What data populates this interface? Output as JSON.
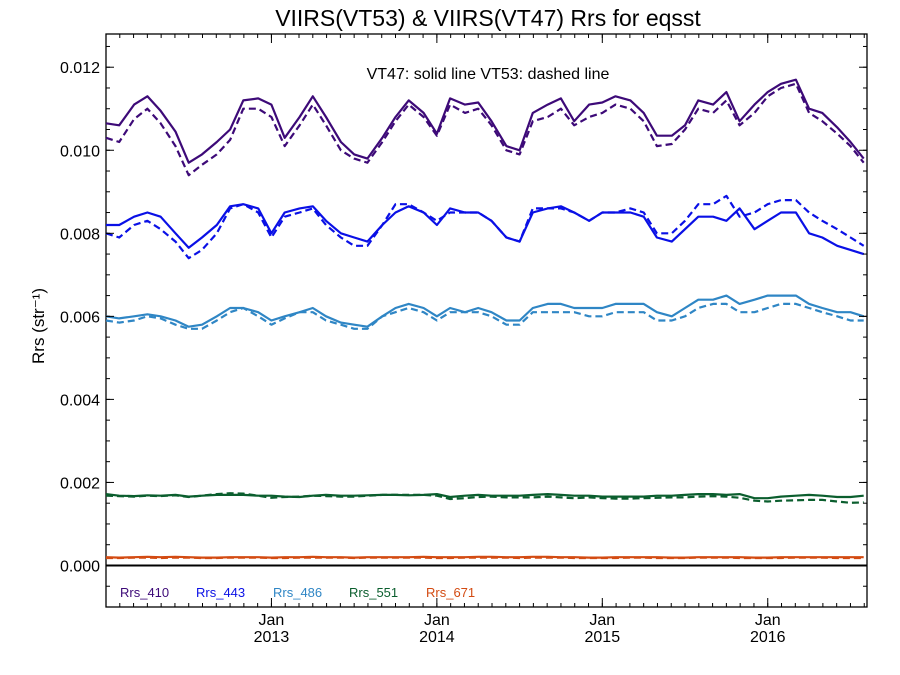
{
  "chart_data": {
    "type": "line",
    "title": "VIIRS(VT53) & VIIRS(VT47)  Rrs for eqsst",
    "annotation": "VT47: solid line   VT53: dashed line",
    "ylabel": "Rrs (str⁻¹)",
    "ylim": [
      -0.001,
      0.0128
    ],
    "xlim": [
      2012.0,
      2016.6
    ],
    "yticks": [
      "0.000",
      "0.002",
      "0.004",
      "0.006",
      "0.008",
      "0.010",
      "0.012"
    ],
    "xticks": [
      {
        "pos": 2013.0,
        "line1": "Jan",
        "line2": "2013"
      },
      {
        "pos": 2014.0,
        "line1": "Jan",
        "line2": "2014"
      },
      {
        "pos": 2015.0,
        "line1": "Jan",
        "line2": "2015"
      },
      {
        "pos": 2016.0,
        "line1": "Jan",
        "line2": "2016"
      }
    ],
    "legend_placement": "bottom-left",
    "grid": false,
    "zero_line": true,
    "x": [
      2012.0,
      2012.08,
      2012.17,
      2012.25,
      2012.33,
      2012.42,
      2012.5,
      2012.58,
      2012.67,
      2012.75,
      2012.83,
      2012.92,
      2013.0,
      2013.08,
      2013.17,
      2013.25,
      2013.33,
      2013.42,
      2013.5,
      2013.58,
      2013.67,
      2013.75,
      2013.83,
      2013.92,
      2014.0,
      2014.08,
      2014.17,
      2014.25,
      2014.33,
      2014.42,
      2014.5,
      2014.58,
      2014.67,
      2014.75,
      2014.83,
      2014.92,
      2015.0,
      2015.08,
      2015.17,
      2015.25,
      2015.33,
      2015.42,
      2015.5,
      2015.58,
      2015.67,
      2015.75,
      2015.83,
      2015.92,
      2016.0,
      2016.08,
      2016.17,
      2016.25,
      2016.33,
      2016.42,
      2016.5,
      2016.58
    ],
    "series": [
      {
        "name": "Rrs_410",
        "band": "410",
        "style": "solid",
        "color": "#3d0a78",
        "values": [
          0.01065,
          0.0106,
          0.0111,
          0.0113,
          0.01095,
          0.01045,
          0.0097,
          0.0099,
          0.0102,
          0.0105,
          0.0112,
          0.01125,
          0.0111,
          0.0103,
          0.0108,
          0.0113,
          0.0108,
          0.0102,
          0.0099,
          0.0098,
          0.0103,
          0.0108,
          0.0112,
          0.0109,
          0.0104,
          0.01125,
          0.0111,
          0.01115,
          0.0107,
          0.0101,
          0.01,
          0.0109,
          0.0111,
          0.01125,
          0.0107,
          0.0111,
          0.01115,
          0.0113,
          0.0112,
          0.0109,
          0.01035,
          0.01035,
          0.0106,
          0.0112,
          0.0111,
          0.0114,
          0.0107,
          0.0111,
          0.0114,
          0.0116,
          0.0117,
          0.011,
          0.0109,
          0.01055,
          0.0102,
          0.0098
        ]
      },
      {
        "name": "Rrs_410",
        "band": "410",
        "style": "dashed",
        "color": "#3d0a78",
        "values": [
          0.0103,
          0.0102,
          0.01075,
          0.011,
          0.01065,
          0.0101,
          0.0094,
          0.00965,
          0.0099,
          0.01025,
          0.011,
          0.011,
          0.0108,
          0.0101,
          0.0106,
          0.0111,
          0.0106,
          0.01,
          0.0098,
          0.0097,
          0.0102,
          0.0107,
          0.0111,
          0.0108,
          0.01035,
          0.0111,
          0.0109,
          0.011,
          0.0106,
          0.01,
          0.0099,
          0.0107,
          0.0108,
          0.011,
          0.0106,
          0.0108,
          0.0109,
          0.0111,
          0.011,
          0.0107,
          0.0101,
          0.01015,
          0.0105,
          0.011,
          0.0109,
          0.0112,
          0.0106,
          0.0109,
          0.0113,
          0.0115,
          0.0116,
          0.0109,
          0.0107,
          0.0104,
          0.0101,
          0.0097
        ]
      },
      {
        "name": "Rrs_443",
        "band": "443",
        "style": "solid",
        "color": "#0a10e6",
        "values": [
          0.0082,
          0.0082,
          0.0084,
          0.0085,
          0.0084,
          0.008,
          0.00765,
          0.0079,
          0.0082,
          0.00865,
          0.0087,
          0.0086,
          0.008,
          0.0085,
          0.0086,
          0.00865,
          0.0083,
          0.008,
          0.0079,
          0.0078,
          0.0082,
          0.0085,
          0.00865,
          0.0085,
          0.0082,
          0.0086,
          0.0085,
          0.0085,
          0.0083,
          0.0079,
          0.0078,
          0.0085,
          0.0086,
          0.00865,
          0.0085,
          0.0083,
          0.0085,
          0.0085,
          0.0085,
          0.0084,
          0.0079,
          0.0078,
          0.0081,
          0.0084,
          0.0084,
          0.0083,
          0.0086,
          0.0081,
          0.0083,
          0.0085,
          0.0085,
          0.008,
          0.0079,
          0.0077,
          0.0076,
          0.0075
        ]
      },
      {
        "name": "Rrs_443",
        "band": "443",
        "style": "dashed",
        "color": "#0a10e6",
        "values": [
          0.008,
          0.0079,
          0.0082,
          0.0083,
          0.0081,
          0.0078,
          0.0074,
          0.0076,
          0.008,
          0.0086,
          0.0087,
          0.0085,
          0.0079,
          0.0084,
          0.0085,
          0.0086,
          0.0082,
          0.0079,
          0.0077,
          0.0077,
          0.0082,
          0.0087,
          0.0087,
          0.0085,
          0.0083,
          0.0085,
          0.0085,
          0.0085,
          0.0083,
          0.0079,
          0.0078,
          0.0086,
          0.0086,
          0.0086,
          0.0085,
          0.0083,
          0.0085,
          0.0085,
          0.0086,
          0.0085,
          0.008,
          0.008,
          0.0083,
          0.0087,
          0.0087,
          0.0089,
          0.0084,
          0.0085,
          0.0087,
          0.0088,
          0.0088,
          0.0085,
          0.0083,
          0.0081,
          0.0079,
          0.0077
        ]
      },
      {
        "name": "Rrs_486",
        "band": "486",
        "style": "solid",
        "color": "#2f86c5",
        "values": [
          0.006,
          0.00595,
          0.006,
          0.00605,
          0.006,
          0.0059,
          0.00575,
          0.0058,
          0.006,
          0.0062,
          0.0062,
          0.0061,
          0.0059,
          0.006,
          0.0061,
          0.0062,
          0.006,
          0.00585,
          0.0058,
          0.00575,
          0.006,
          0.0062,
          0.0063,
          0.0062,
          0.006,
          0.0062,
          0.0061,
          0.0062,
          0.0061,
          0.0059,
          0.0059,
          0.0062,
          0.0063,
          0.0063,
          0.0062,
          0.0062,
          0.0062,
          0.0063,
          0.0063,
          0.0063,
          0.0061,
          0.006,
          0.0062,
          0.0064,
          0.0064,
          0.0065,
          0.0063,
          0.0064,
          0.0065,
          0.0065,
          0.0065,
          0.0063,
          0.0062,
          0.0061,
          0.0061,
          0.006
        ]
      },
      {
        "name": "Rrs_486",
        "band": "486",
        "style": "dashed",
        "color": "#2f86c5",
        "values": [
          0.0059,
          0.00585,
          0.0059,
          0.006,
          0.00595,
          0.0058,
          0.0057,
          0.0057,
          0.0059,
          0.0061,
          0.0062,
          0.006,
          0.0058,
          0.00595,
          0.0061,
          0.0061,
          0.0059,
          0.0058,
          0.0057,
          0.0057,
          0.006,
          0.0061,
          0.0062,
          0.0061,
          0.0059,
          0.0061,
          0.0061,
          0.0061,
          0.006,
          0.0058,
          0.0058,
          0.0061,
          0.0061,
          0.0061,
          0.0061,
          0.006,
          0.006,
          0.0061,
          0.0061,
          0.0061,
          0.0059,
          0.0059,
          0.006,
          0.0062,
          0.0063,
          0.0063,
          0.0061,
          0.0061,
          0.0062,
          0.0063,
          0.0063,
          0.0062,
          0.0061,
          0.006,
          0.0059,
          0.0059
        ]
      },
      {
        "name": "Rrs_551",
        "band": "551",
        "style": "solid",
        "color": "#0b5e2e",
        "values": [
          0.00172,
          0.00168,
          0.00167,
          0.00169,
          0.00168,
          0.0017,
          0.00166,
          0.00168,
          0.0017,
          0.0017,
          0.0017,
          0.00168,
          0.00168,
          0.00166,
          0.00165,
          0.00168,
          0.0017,
          0.00168,
          0.00168,
          0.00169,
          0.0017,
          0.0017,
          0.00169,
          0.0017,
          0.00172,
          0.00165,
          0.00168,
          0.0017,
          0.00168,
          0.00168,
          0.00168,
          0.0017,
          0.00172,
          0.0017,
          0.00168,
          0.00168,
          0.00166,
          0.00166,
          0.00166,
          0.00166,
          0.00168,
          0.00168,
          0.0017,
          0.00172,
          0.00172,
          0.0017,
          0.00172,
          0.00162,
          0.00162,
          0.00166,
          0.00168,
          0.0017,
          0.00168,
          0.00165,
          0.00165,
          0.00168
        ]
      },
      {
        "name": "Rrs_551",
        "band": "551",
        "style": "dashed",
        "color": "#0b5e2e",
        "values": [
          0.00168,
          0.00167,
          0.00166,
          0.00168,
          0.00167,
          0.00169,
          0.00165,
          0.00168,
          0.00172,
          0.00174,
          0.00173,
          0.00168,
          0.00163,
          0.00165,
          0.00166,
          0.00168,
          0.00167,
          0.00166,
          0.00166,
          0.00168,
          0.0017,
          0.0017,
          0.0017,
          0.0017,
          0.00168,
          0.0016,
          0.00162,
          0.00165,
          0.00166,
          0.00164,
          0.00164,
          0.00164,
          0.00166,
          0.00164,
          0.00162,
          0.00164,
          0.00162,
          0.00161,
          0.00161,
          0.00162,
          0.00163,
          0.00164,
          0.00164,
          0.00166,
          0.00167,
          0.00166,
          0.00163,
          0.00156,
          0.00154,
          0.00156,
          0.00157,
          0.00158,
          0.00158,
          0.00154,
          0.00151,
          0.00152
        ]
      },
      {
        "name": "Rrs_671",
        "band": "671",
        "style": "solid",
        "color": "#d34b12",
        "values": [
          0.0002,
          0.00019,
          0.0002,
          0.00021,
          0.0002,
          0.00021,
          0.0002,
          0.00019,
          0.00019,
          0.0002,
          0.0002,
          0.0002,
          0.00019,
          0.0002,
          0.0002,
          0.00021,
          0.0002,
          0.0002,
          0.00019,
          0.0002,
          0.0002,
          0.0002,
          0.0002,
          0.00021,
          0.0002,
          0.0002,
          0.0002,
          0.00021,
          0.00021,
          0.0002,
          0.0002,
          0.00021,
          0.00021,
          0.0002,
          0.0002,
          0.00019,
          0.00019,
          0.0002,
          0.0002,
          0.0002,
          0.0002,
          0.00019,
          0.00019,
          0.0002,
          0.0002,
          0.0002,
          0.0002,
          0.00019,
          0.00019,
          0.0002,
          0.0002,
          0.0002,
          0.0002,
          0.0002,
          0.0002,
          0.0002
        ]
      },
      {
        "name": "Rrs_671",
        "band": "671",
        "style": "dashed",
        "color": "#d34b12",
        "values": [
          0.00018,
          0.00018,
          0.00019,
          0.00019,
          0.00018,
          0.00019,
          0.00019,
          0.00018,
          0.00018,
          0.00019,
          0.00019,
          0.00019,
          0.00018,
          0.00018,
          0.00019,
          0.00019,
          0.00019,
          0.00019,
          0.00018,
          0.00019,
          0.00019,
          0.00019,
          0.00019,
          0.00019,
          0.00018,
          0.00018,
          0.00019,
          0.00019,
          0.00019,
          0.00019,
          0.00018,
          0.00019,
          0.00019,
          0.00019,
          0.00018,
          0.00018,
          0.00018,
          0.00018,
          0.00019,
          0.00019,
          0.00018,
          0.00018,
          0.00018,
          0.00019,
          0.00019,
          0.00019,
          0.00018,
          0.00018,
          0.00018,
          0.00018,
          0.00019,
          0.00019,
          0.00019,
          0.00018,
          0.00018,
          0.00018
        ]
      }
    ],
    "legend": [
      {
        "label": "Rrs_410",
        "color": "#3d0a78"
      },
      {
        "label": "Rrs_443",
        "color": "#0a10e6"
      },
      {
        "label": "Rrs_486",
        "color": "#2f86c5"
      },
      {
        "label": "Rrs_551",
        "color": "#0b5e2e"
      },
      {
        "label": "Rrs_671",
        "color": "#d34b12"
      }
    ]
  }
}
